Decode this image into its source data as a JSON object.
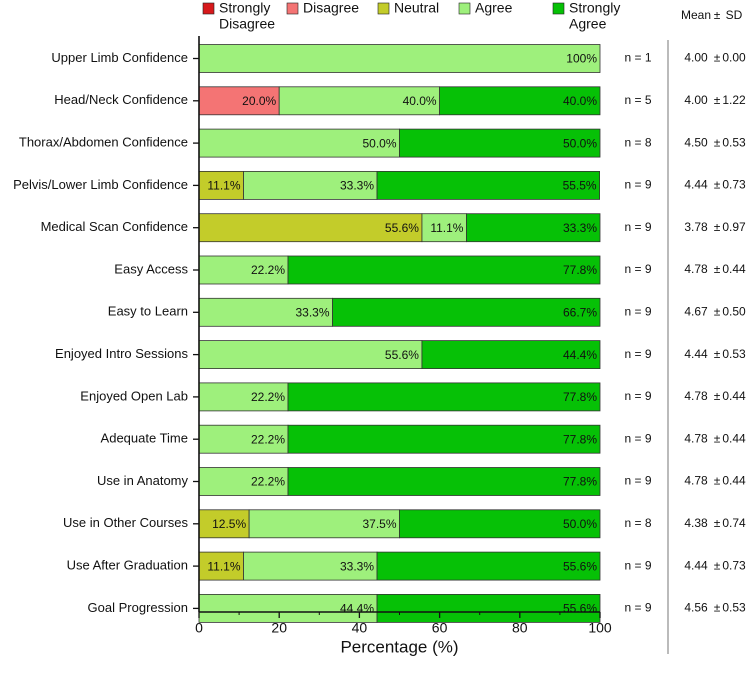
{
  "chart_data": {
    "type": "bar",
    "orientation": "horizontal",
    "stacked": true,
    "xlabel": "Percentage (%)",
    "xlim": [
      0,
      100
    ],
    "xticks": [
      0,
      20,
      40,
      60,
      80,
      100
    ],
    "legend_position": "top",
    "legend": [
      {
        "key": "strongly_disagree",
        "label": "Strongly Disagree",
        "lines": [
          "Strongly",
          "Disagree"
        ],
        "color": "#d7191c"
      },
      {
        "key": "disagree",
        "label": "Disagree",
        "lines": [
          "Disagree"
        ],
        "color": "#f47474"
      },
      {
        "key": "neutral",
        "label": "Neutral",
        "lines": [
          "Neutral"
        ],
        "color": "#c3cc2a"
      },
      {
        "key": "agree",
        "label": "Agree",
        "lines": [
          "Agree"
        ],
        "color": "#9ef07c"
      },
      {
        "key": "strongly_agree",
        "label": "Strongly Agree",
        "lines": [
          "Strongly",
          "Agree"
        ],
        "color": "#06c106"
      }
    ],
    "stats_header": {
      "mean": "Mean",
      "pm": "±",
      "sd": "SD"
    },
    "categories": [
      "Upper Limb Confidence",
      "Head/Neck Confidence",
      "Thorax/Abdomen Confidence",
      "Pelvis/Lower Limb Confidence",
      "Medical Scan Confidence",
      "Easy Access",
      "Easy to Learn",
      "Enjoyed Intro Sessions",
      "Enjoyed Open Lab",
      "Adequate Time",
      "Use in Anatomy",
      "Use in Other Courses",
      "Use After Graduation",
      "Goal Progression"
    ],
    "series": [
      {
        "key": "strongly_disagree",
        "name": "Strongly Disagree",
        "values": [
          0,
          0,
          0,
          0,
          0,
          0,
          0,
          0,
          0,
          0,
          0,
          0,
          0,
          0
        ]
      },
      {
        "key": "disagree",
        "name": "Disagree",
        "values": [
          0,
          20.0,
          0,
          0,
          0,
          0,
          0,
          0,
          0,
          0,
          0,
          0,
          0,
          0
        ]
      },
      {
        "key": "neutral",
        "name": "Neutral",
        "values": [
          0,
          0,
          0,
          11.1,
          55.6,
          0,
          0,
          0,
          0,
          0,
          0,
          12.5,
          11.1,
          0
        ]
      },
      {
        "key": "agree",
        "name": "Agree",
        "values": [
          100,
          40.0,
          50.0,
          33.3,
          11.1,
          22.2,
          33.3,
          55.6,
          22.2,
          22.2,
          22.2,
          37.5,
          33.3,
          44.4
        ]
      },
      {
        "key": "strongly_agree",
        "name": "Strongly Agree",
        "values": [
          0,
          40.0,
          50.0,
          55.5,
          33.3,
          77.8,
          66.7,
          44.4,
          77.8,
          77.8,
          77.8,
          50.0,
          55.6,
          55.6
        ]
      }
    ],
    "data_labels": [
      [
        "100%"
      ],
      [
        "20.0%",
        "40.0%",
        "40.0%"
      ],
      [
        "50.0%",
        "50.0%"
      ],
      [
        "11.1%",
        "33.3%",
        "55.5%"
      ],
      [
        "55.6%",
        "11.1%",
        "33.3%"
      ],
      [
        "22.2%",
        "77.8%"
      ],
      [
        "33.3%",
        "66.7%"
      ],
      [
        "55.6%",
        "44.4%"
      ],
      [
        "22.2%",
        "77.8%"
      ],
      [
        "22.2%",
        "77.8%"
      ],
      [
        "22.2%",
        "77.8%"
      ],
      [
        "12.5%",
        "37.5%",
        "50.0%"
      ],
      [
        "11.1%",
        "33.3%",
        "55.6%"
      ],
      [
        "44.4%",
        "55.6%"
      ]
    ],
    "n_labels": [
      "n = 1",
      "n = 5",
      "n = 8",
      "n = 9",
      "n = 9",
      "n = 9",
      "n = 9",
      "n = 9",
      "n = 9",
      "n = 9",
      "n = 9",
      "n = 8",
      "n = 9",
      "n = 9"
    ],
    "means": [
      "4.00",
      "4.00",
      "4.50",
      "4.44",
      "3.78",
      "4.78",
      "4.67",
      "4.44",
      "4.78",
      "4.78",
      "4.78",
      "4.38",
      "4.44",
      "4.56"
    ],
    "sds": [
      "0.00",
      "1.22",
      "0.53",
      "0.73",
      "0.97",
      "0.44",
      "0.50",
      "0.53",
      "0.44",
      "0.44",
      "0.44",
      "0.74",
      "0.73",
      "0.53"
    ]
  }
}
